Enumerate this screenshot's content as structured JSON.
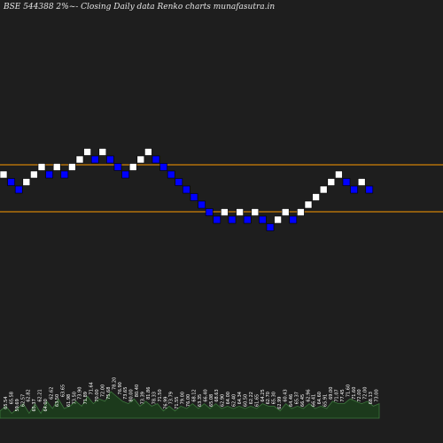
{
  "title": "BSE 544388  2%~-  Closing Daily data  Renko  charts munafasutra.in",
  "colors": {
    "background": "#1e1e1e",
    "up_brick": "#ffffff",
    "down_brick": "#0000ff",
    "brick_edge": "#000000",
    "level_line": "#ff9900",
    "volume_fill": "#1c3a1c",
    "volume_line": "#3c783c"
  },
  "chart_data": {
    "type": "renko",
    "brick_levels": [
      0,
      -1,
      -2,
      -1,
      0,
      1,
      0,
      1,
      0,
      1,
      2,
      3,
      2,
      3,
      2,
      1,
      0,
      1,
      2,
      3,
      2,
      1,
      0,
      -1,
      -2,
      -3,
      -4,
      -5,
      -6,
      -5,
      -6,
      -5,
      -6,
      -5,
      -6,
      -7,
      -6,
      -5,
      -6,
      -5,
      -4,
      -3,
      -2,
      -1,
      0,
      -1,
      -2,
      -1,
      -2
    ],
    "brick_dirs": [
      "up",
      "down",
      "down",
      "up",
      "up",
      "up",
      "down",
      "up",
      "down",
      "up",
      "up",
      "up",
      "down",
      "up",
      "down",
      "down",
      "down",
      "up",
      "up",
      "up",
      "down",
      "down",
      "down",
      "down",
      "down",
      "down",
      "down",
      "down",
      "down",
      "up",
      "down",
      "up",
      "down",
      "up",
      "down",
      "down",
      "up",
      "up",
      "down",
      "up",
      "up",
      "up",
      "up",
      "up",
      "up",
      "down",
      "down",
      "up",
      "down"
    ],
    "horizontal_lines": [
      0,
      -4
    ],
    "volume": {
      "values": [
        3,
        5,
        2,
        4,
        6,
        2,
        6,
        2,
        7,
        4,
        8,
        4,
        5,
        7,
        5,
        9,
        6,
        8,
        7,
        11,
        9,
        7,
        6,
        8,
        5,
        7,
        5,
        6,
        3,
        5,
        3,
        5,
        4,
        6,
        4,
        6,
        4,
        6,
        4,
        5,
        4,
        5,
        4,
        5,
        4,
        6,
        5,
        5,
        3,
        6,
        4,
        5,
        4,
        6,
        4,
        5,
        4,
        7,
        6,
        6,
        8,
        7,
        6,
        7,
        5,
        6
      ],
      "labels": [
        "65.54",
        "65.58",
        "59.69",
        "62.57",
        "62.82",
        "65.37",
        "62.21",
        "64.00",
        "62.62",
        "63.50",
        "63.65",
        "61.98",
        "73.50",
        "73.90",
        "71.89",
        "71.64",
        "70.00",
        "72.00",
        "75.68",
        "78.20",
        "76.90",
        "73.65",
        "80.00",
        "80.40",
        "73.39",
        "81.86",
        "78.33",
        "71.50",
        "76.99",
        "73.79",
        "71.55",
        "79.00",
        "76.00",
        "68.12",
        "63.35",
        "66.40",
        "65.08",
        "68.63",
        "62.90",
        "64.00",
        "62.40",
        "64.34",
        "60.50",
        "62.22",
        "61.65",
        "64.25",
        "62.70",
        "65.30",
        "62.99",
        "60.43",
        "64.46",
        "65.37",
        "66.45",
        "62.96",
        "66.41",
        "64.60",
        "65.91",
        "69.00",
        "71.07",
        "77.45",
        "71.60",
        "71.60",
        "72.00",
        "72.00",
        "68.13",
        "73.00"
      ]
    }
  }
}
